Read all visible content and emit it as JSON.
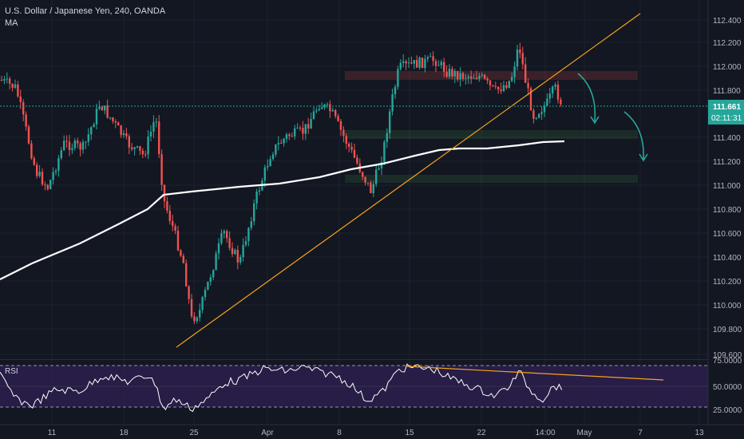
{
  "legend": {
    "title": "U.S. Dollar / Japanese Yen, 240, OANDA",
    "indicator": "MA"
  },
  "rsi": {
    "title": "RSI",
    "levels": [
      "75.0000",
      "50.0000",
      "25.0000"
    ]
  },
  "price_axis": {
    "ticks": [
      "112.400",
      "112.200",
      "112.000",
      "111.800",
      "111.400",
      "111.200",
      "111.000",
      "110.800",
      "110.600",
      "110.400",
      "110.200",
      "110.000",
      "109.800",
      "109.600"
    ],
    "last_price": "111.661",
    "countdown": "02:11:31",
    "badge_color": "#26a69a"
  },
  "time_axis": {
    "ticks": [
      "11",
      "18",
      "25",
      "Apr",
      "8",
      "15",
      "22",
      "14:00",
      "May",
      "7",
      "13"
    ]
  },
  "colors": {
    "bg": "#131722",
    "up": "#26a69a",
    "down": "#ef5350",
    "ma": "#ffffff",
    "trend": "#f7a21b",
    "arrow": "#26a69a",
    "rsi_bg": "#2a1e4a"
  }
}
